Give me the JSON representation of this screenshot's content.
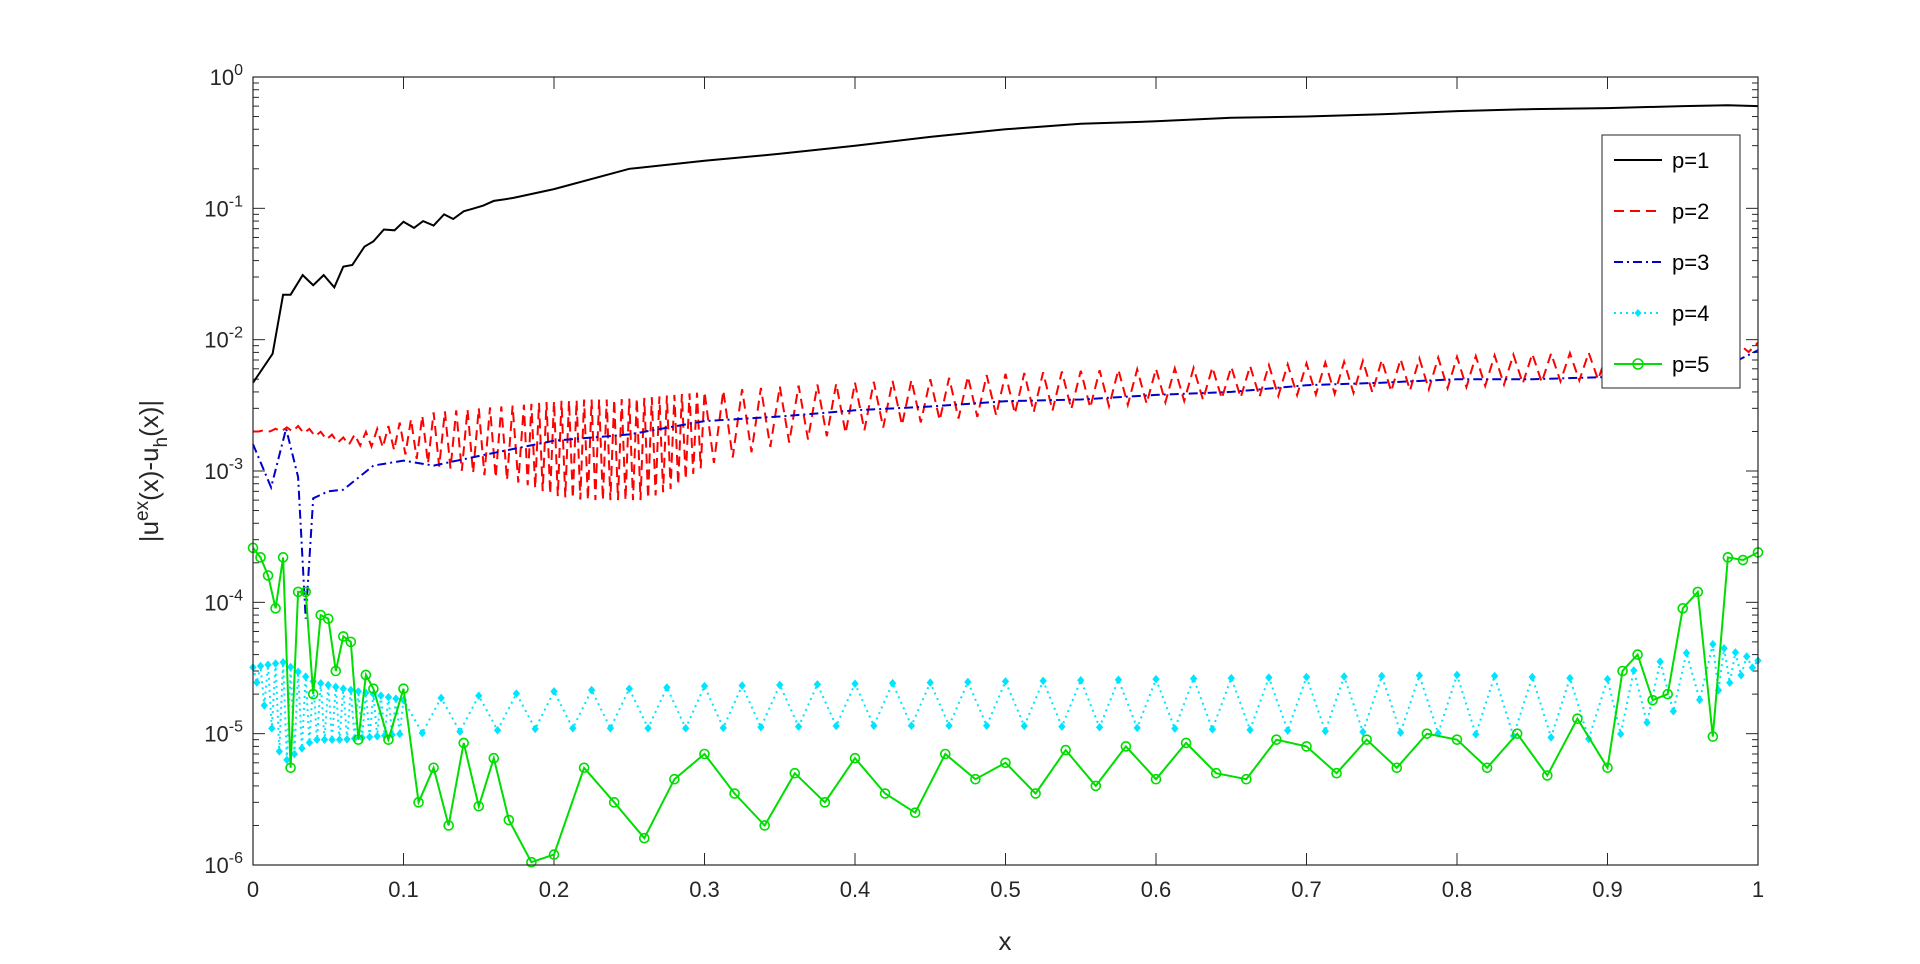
{
  "chart_data": {
    "type": "line",
    "xlabel": "x",
    "ylabel": "|u^{ex}(x)-u_h(x)|",
    "ylabel_parts": {
      "base1": "|u",
      "sup": "ex",
      "mid": "(x)-u",
      "sub": "h",
      "end": "(x)|"
    },
    "xlim": [
      0,
      1
    ],
    "ylim": [
      1e-06,
      1
    ],
    "yscale": "log",
    "grid": false,
    "legend_position": "top-right",
    "x_ticks": [
      "0",
      "0.1",
      "0.2",
      "0.3",
      "0.4",
      "0.5",
      "0.6",
      "0.7",
      "0.8",
      "0.9",
      "1"
    ],
    "y_ticks": [
      {
        "base": "10",
        "exp": "-6"
      },
      {
        "base": "10",
        "exp": "-5"
      },
      {
        "base": "10",
        "exp": "-4"
      },
      {
        "base": "10",
        "exp": "-3"
      },
      {
        "base": "10",
        "exp": "-2"
      },
      {
        "base": "10",
        "exp": "-1"
      },
      {
        "base": "10",
        "exp": "0"
      }
    ],
    "series": [
      {
        "name": "p=1",
        "color": "#000000",
        "style": "solid",
        "marker": "none",
        "x": [
          0,
          0.013,
          0.02,
          0.025,
          0.033,
          0.04,
          0.047,
          0.054,
          0.06,
          0.066,
          0.074,
          0.08,
          0.087,
          0.094,
          0.1,
          0.107,
          0.113,
          0.12,
          0.127,
          0.133,
          0.14,
          0.147,
          0.153,
          0.16,
          0.167,
          0.173,
          0.18,
          0.2,
          0.25,
          0.3,
          0.35,
          0.4,
          0.45,
          0.5,
          0.55,
          0.6,
          0.65,
          0.7,
          0.75,
          0.8,
          0.85,
          0.9,
          0.95,
          0.98,
          1
        ],
        "y": [
          0.0047,
          0.0078,
          0.022,
          0.022,
          0.031,
          0.026,
          0.031,
          0.025,
          0.036,
          0.037,
          0.051,
          0.056,
          0.069,
          0.068,
          0.079,
          0.071,
          0.08,
          0.074,
          0.09,
          0.083,
          0.095,
          0.1,
          0.105,
          0.114,
          0.117,
          0.12,
          0.125,
          0.14,
          0.2,
          0.23,
          0.26,
          0.3,
          0.35,
          0.4,
          0.44,
          0.46,
          0.49,
          0.5,
          0.52,
          0.55,
          0.57,
          0.58,
          0.6,
          0.61,
          0.6
        ]
      },
      {
        "name": "p=2",
        "color": "#ff0000",
        "style": "dashed",
        "marker": "none",
        "x": [
          0,
          0.03,
          0.06,
          0.09,
          0.12,
          0.15,
          0.18,
          0.2,
          0.22,
          0.24,
          0.26,
          0.28,
          0.3,
          0.35,
          0.4,
          0.45,
          0.5,
          0.55,
          0.6,
          0.65,
          0.7,
          0.75,
          0.8,
          0.85,
          0.9,
          0.95,
          1
        ],
        "y": [
          0.002,
          0.0022,
          0.0018,
          0.0022,
          0.0028,
          0.003,
          0.0032,
          0.0034,
          0.0035,
          0.0035,
          0.0036,
          0.0038,
          0.004,
          0.0044,
          0.0047,
          0.005,
          0.0055,
          0.0058,
          0.006,
          0.0062,
          0.0066,
          0.007,
          0.0074,
          0.0078,
          0.008,
          0.0084,
          0.0095
        ],
        "y_low": [
          0.002,
          0.002,
          0.0016,
          0.0015,
          0.0011,
          0.00095,
          0.0008,
          0.00065,
          0.0006,
          0.0006,
          0.0006,
          0.00075,
          0.0011,
          0.0016,
          0.002,
          0.0024,
          0.0027,
          0.003,
          0.0033,
          0.0036,
          0.0038,
          0.004,
          0.0043,
          0.0047,
          0.005,
          0.0055,
          0.0085
        ]
      },
      {
        "name": "p=3",
        "color": "#0000cc",
        "style": "dashdot",
        "marker": "none",
        "x": [
          0,
          0.012,
          0.022,
          0.03,
          0.035,
          0.04,
          0.05,
          0.06,
          0.08,
          0.1,
          0.12,
          0.15,
          0.2,
          0.25,
          0.3,
          0.35,
          0.4,
          0.45,
          0.5,
          0.55,
          0.6,
          0.65,
          0.7,
          0.75,
          0.8,
          0.85,
          0.9,
          0.95,
          0.97,
          1
        ],
        "y": [
          0.0016,
          0.00075,
          0.0021,
          0.0009,
          7.5e-05,
          0.00062,
          0.0007,
          0.00072,
          0.0011,
          0.0012,
          0.0011,
          0.0013,
          0.0017,
          0.0019,
          0.0024,
          0.0026,
          0.0029,
          0.0031,
          0.0034,
          0.0035,
          0.0038,
          0.004,
          0.0045,
          0.0047,
          0.005,
          0.005,
          0.0052,
          0.0055,
          0.0056,
          0.0083
        ]
      },
      {
        "name": "p=4",
        "color": "#00e5ff",
        "style": "dotted",
        "marker": "diamond",
        "x": [
          0,
          0.02,
          0.04,
          0.06,
          0.08,
          0.1,
          0.2,
          0.3,
          0.4,
          0.5,
          0.6,
          0.7,
          0.8,
          0.9,
          0.97,
          1
        ],
        "y": [
          3.2e-05,
          3.5e-05,
          2.5e-05,
          2.2e-05,
          2e-05,
          1.8e-05,
          2.1e-05,
          2.3e-05,
          2.4e-05,
          2.5e-05,
          2.6e-05,
          2.7e-05,
          2.8e-05,
          2.6e-05,
          4.8e-05,
          3.6e-05
        ],
        "y_low": [
          3e-05,
          6e-06,
          9e-06,
          9e-06,
          9.5e-06,
          1e-05,
          1.1e-05,
          1.1e-05,
          1.15e-05,
          1.15e-05,
          1.1e-05,
          1.05e-05,
          1e-05,
          9e-06,
          2e-05,
          3.4e-05
        ]
      },
      {
        "name": "p=5",
        "color": "#00dd00",
        "style": "solid",
        "marker": "circle",
        "x": [
          0,
          0.005,
          0.01,
          0.015,
          0.02,
          0.025,
          0.03,
          0.035,
          0.04,
          0.045,
          0.05,
          0.055,
          0.06,
          0.065,
          0.07,
          0.075,
          0.08,
          0.09,
          0.1,
          0.11,
          0.12,
          0.13,
          0.14,
          0.15,
          0.16,
          0.17,
          0.185,
          0.2,
          0.22,
          0.24,
          0.26,
          0.28,
          0.3,
          0.32,
          0.34,
          0.36,
          0.38,
          0.4,
          0.42,
          0.44,
          0.46,
          0.48,
          0.5,
          0.52,
          0.54,
          0.56,
          0.58,
          0.6,
          0.62,
          0.64,
          0.66,
          0.68,
          0.7,
          0.72,
          0.74,
          0.76,
          0.78,
          0.8,
          0.82,
          0.84,
          0.86,
          0.88,
          0.9,
          0.91,
          0.92,
          0.93,
          0.94,
          0.95,
          0.96,
          0.97,
          0.98,
          0.99,
          1
        ],
        "y": [
          0.00026,
          0.00022,
          0.00016,
          9e-05,
          0.00022,
          5.5e-06,
          0.00012,
          0.00012,
          2e-05,
          8e-05,
          7.5e-05,
          3e-05,
          5.5e-05,
          5e-05,
          9e-06,
          2.8e-05,
          2.2e-05,
          9e-06,
          2.2e-05,
          3e-06,
          5.5e-06,
          2e-06,
          8.5e-06,
          2.8e-06,
          6.5e-06,
          2.2e-06,
          1.05e-06,
          1.2e-06,
          5.5e-06,
          3e-06,
          1.6e-06,
          4.5e-06,
          7e-06,
          3.5e-06,
          2e-06,
          5e-06,
          3e-06,
          6.5e-06,
          3.5e-06,
          2.5e-06,
          7e-06,
          4.5e-06,
          6e-06,
          3.5e-06,
          7.5e-06,
          4e-06,
          8e-06,
          4.5e-06,
          8.5e-06,
          5e-06,
          4.5e-06,
          9e-06,
          8e-06,
          5e-06,
          9e-06,
          5.5e-06,
          1e-05,
          9e-06,
          5.5e-06,
          1e-05,
          4.8e-06,
          1.3e-05,
          5.5e-06,
          3e-05,
          4e-05,
          1.8e-05,
          2e-05,
          9e-05,
          0.00012,
          9.5e-06,
          0.00022,
          0.00021,
          0.00024
        ]
      }
    ]
  }
}
